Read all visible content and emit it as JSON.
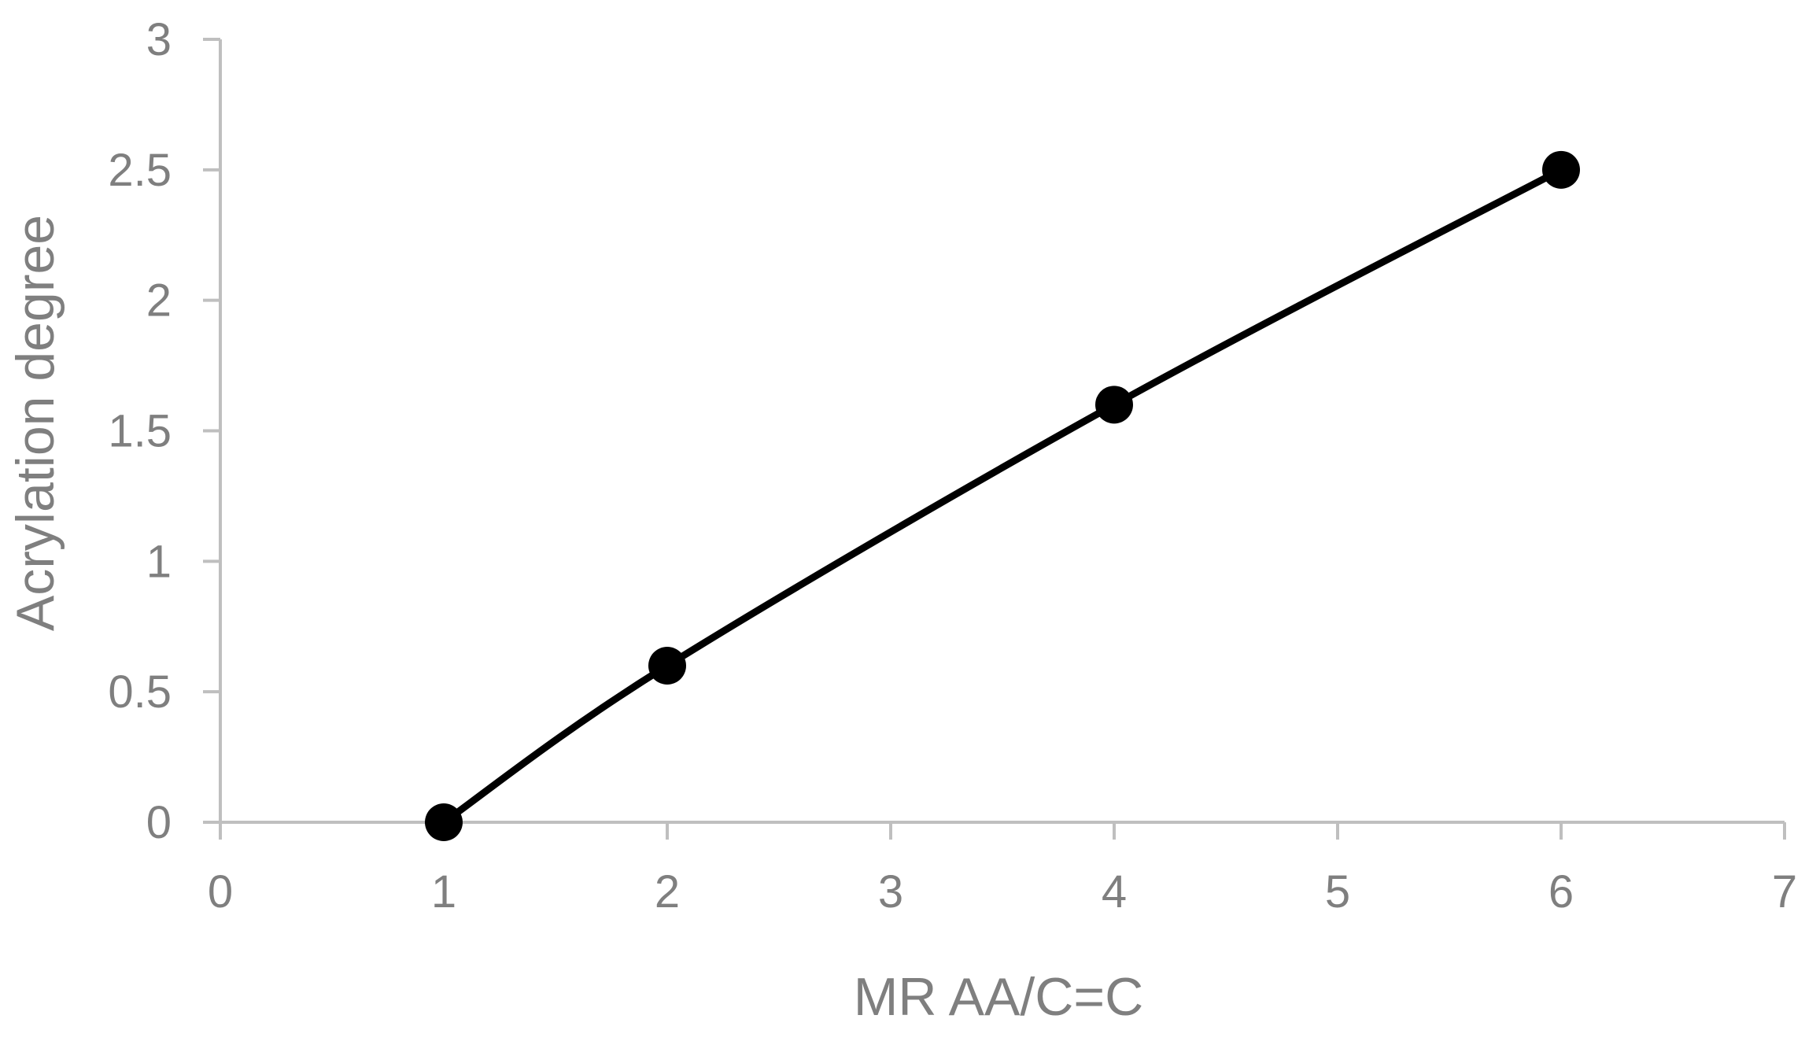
{
  "chart_data": {
    "type": "line",
    "title": "",
    "xlabel": "MR AA/C=C",
    "ylabel": "Acrylation degree",
    "xlim": [
      0,
      7
    ],
    "ylim": [
      0,
      3
    ],
    "x_ticks": [
      "0",
      "1",
      "2",
      "3",
      "4",
      "5",
      "6",
      "7"
    ],
    "y_ticks": [
      "0",
      "0.5",
      "1",
      "1.5",
      "2",
      "2.5",
      "3"
    ],
    "grid": false,
    "legend": "none",
    "smooth": true,
    "series": [
      {
        "x": [
          1,
          2,
          4,
          6
        ],
        "y": [
          0,
          0.6,
          1.6,
          2.5
        ],
        "color": "#000000",
        "marker": "circle"
      }
    ],
    "axis_color": "#bfbfbf",
    "text_color": "#7f7f7f"
  }
}
